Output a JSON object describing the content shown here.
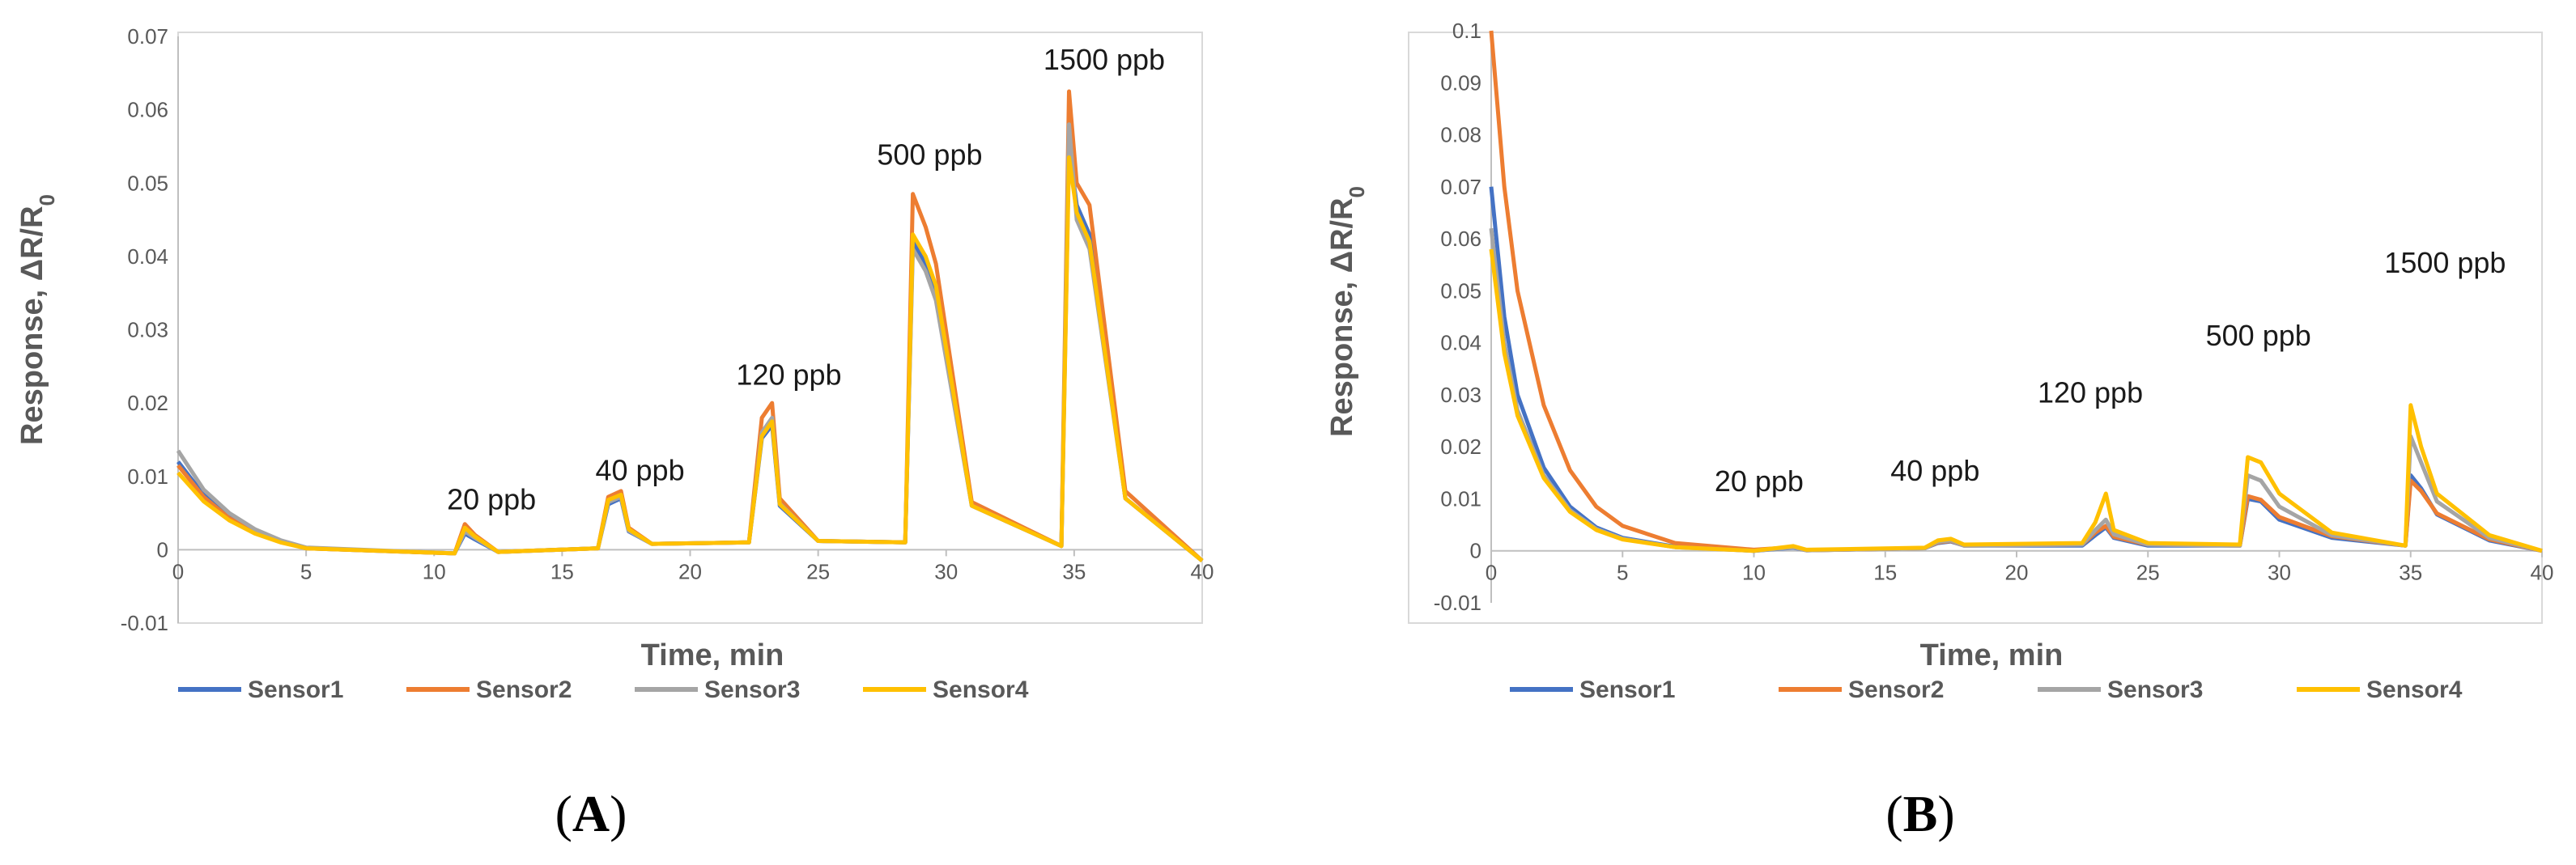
{
  "chart_data": [
    {
      "panel": "(A)",
      "panel_letter": "A",
      "type": "line",
      "xlabel": "Time, min",
      "ylabel": "Response, ΔR/R",
      "ylabel_sub": "0",
      "xlim": [
        0,
        40
      ],
      "ylim": [
        -0.01,
        0.07
      ],
      "xticks": [
        0,
        5,
        10,
        15,
        20,
        25,
        30,
        35,
        40
      ],
      "yticks": [
        -0.01,
        0,
        0.01,
        0.02,
        0.03,
        0.04,
        0.05,
        0.06,
        0.07
      ],
      "ytick_labels": [
        "-0.01",
        "0",
        "0.01",
        "0.02",
        "0.03",
        "0.04",
        "0.05",
        "0.06",
        "0.07"
      ],
      "legend": [
        "Sensor1",
        "Sensor2",
        "Sensor3",
        "Sensor4"
      ],
      "annotations": [
        {
          "text": "20 ppb",
          "x": 10.5,
          "y": 0.0055
        },
        {
          "text": "40 ppb",
          "x": 16.3,
          "y": 0.0095
        },
        {
          "text": "120 ppb",
          "x": 21.8,
          "y": 0.0225
        },
        {
          "text": "500 ppb",
          "x": 27.3,
          "y": 0.0525
        },
        {
          "text": "1500 ppb",
          "x": 33.8,
          "y": 0.0655
        }
      ],
      "series": [
        {
          "name": "Sensor1",
          "color": "#4472c4",
          "x": [
            0,
            1,
            2,
            3,
            4,
            5,
            10.8,
            11.2,
            11.6,
            12.5,
            16.4,
            16.8,
            17.3,
            17.6,
            18.5,
            22.3,
            22.8,
            23.2,
            23.5,
            25,
            28.4,
            28.7,
            29.2,
            29.6,
            31,
            34.5,
            34.8,
            35.1,
            35.6,
            37,
            40
          ],
          "y": [
            0.012,
            0.0075,
            0.0045,
            0.0025,
            0.0012,
            0.0002,
            -0.0005,
            0.0022,
            0.0014,
            -0.0003,
            0.0002,
            0.0062,
            0.007,
            0.0025,
            0.0008,
            0.001,
            0.0152,
            0.017,
            0.006,
            0.0012,
            0.001,
            0.042,
            0.039,
            0.035,
            0.006,
            0.0005,
            0.055,
            0.047,
            0.043,
            0.007,
            -0.0015
          ]
        },
        {
          "name": "Sensor2",
          "color": "#ed7d31",
          "x": [
            0,
            1,
            2,
            3,
            4,
            5,
            10.8,
            11.2,
            11.6,
            12.5,
            16.4,
            16.8,
            17.3,
            17.6,
            18.5,
            22.3,
            22.8,
            23.2,
            23.5,
            25,
            28.4,
            28.7,
            29.2,
            29.6,
            31,
            34.5,
            34.8,
            35.1,
            35.6,
            37,
            40
          ],
          "y": [
            0.0115,
            0.0072,
            0.0043,
            0.0024,
            0.0011,
            0.0002,
            -0.0005,
            0.0035,
            0.002,
            -0.0003,
            0.0002,
            0.0072,
            0.008,
            0.003,
            0.0008,
            0.001,
            0.018,
            0.02,
            0.007,
            0.0012,
            0.001,
            0.0485,
            0.044,
            0.039,
            0.0065,
            0.0005,
            0.0625,
            0.05,
            0.047,
            0.008,
            -0.0015
          ]
        },
        {
          "name": "Sensor3",
          "color": "#a5a5a5",
          "x": [
            0,
            1,
            2,
            3,
            4,
            5,
            10.8,
            11.2,
            11.6,
            12.5,
            16.4,
            16.8,
            17.3,
            17.6,
            18.5,
            22.3,
            22.8,
            23.2,
            23.5,
            25,
            28.4,
            28.7,
            29.2,
            29.6,
            31,
            34.5,
            34.8,
            35.1,
            35.6,
            37,
            40
          ],
          "y": [
            0.0135,
            0.0082,
            0.005,
            0.0028,
            0.0013,
            0.0003,
            -0.0005,
            0.0025,
            0.0016,
            -0.0003,
            0.0002,
            0.0065,
            0.0072,
            0.0026,
            0.0008,
            0.001,
            0.016,
            0.018,
            0.0063,
            0.0012,
            0.001,
            0.041,
            0.038,
            0.034,
            0.006,
            0.0005,
            0.058,
            0.045,
            0.041,
            0.007,
            -0.0015
          ]
        },
        {
          "name": "Sensor4",
          "color": "#ffc000",
          "x": [
            0,
            1,
            2,
            3,
            4,
            5,
            10.8,
            11.2,
            11.6,
            12.5,
            16.4,
            16.8,
            17.3,
            17.6,
            18.5,
            22.3,
            22.8,
            23.2,
            23.5,
            25,
            28.4,
            28.7,
            29.2,
            29.6,
            31,
            34.5,
            34.8,
            35.1,
            35.6,
            37,
            40
          ],
          "y": [
            0.0105,
            0.0066,
            0.004,
            0.0022,
            0.001,
            0.0002,
            -0.0005,
            0.003,
            0.0018,
            -0.0003,
            0.0002,
            0.0068,
            0.0075,
            0.0028,
            0.0008,
            0.001,
            0.0155,
            0.0175,
            0.0062,
            0.0012,
            0.001,
            0.043,
            0.04,
            0.036,
            0.006,
            0.0005,
            0.0535,
            0.046,
            0.042,
            0.007,
            -0.0015
          ]
        }
      ]
    },
    {
      "panel": "(B)",
      "panel_letter": "B",
      "type": "line",
      "xlabel": "Time, min",
      "ylabel": "Response, ΔR/R",
      "ylabel_sub": "0",
      "xlim": [
        0,
        40
      ],
      "ylim": [
        -0.01,
        0.1
      ],
      "xticks": [
        0,
        5,
        10,
        15,
        20,
        25,
        30,
        35,
        40
      ],
      "yticks": [
        -0.01,
        0,
        0.01,
        0.02,
        0.03,
        0.04,
        0.05,
        0.06,
        0.07,
        0.08,
        0.09,
        0.1
      ],
      "ytick_labels": [
        "-0.01",
        "0",
        "0.01",
        "0.02",
        "0.03",
        "0.04",
        "0.05",
        "0.06",
        "0.07",
        "0.08",
        "0.09",
        "0.1"
      ],
      "legend": [
        "Sensor1",
        "Sensor2",
        "Sensor3",
        "Sensor4"
      ],
      "annotations": [
        {
          "text": "20 ppb",
          "x": 8.5,
          "y": 0.0115
        },
        {
          "text": "40 ppb",
          "x": 15.2,
          "y": 0.0135
        },
        {
          "text": "120 ppb",
          "x": 20.8,
          "y": 0.0285
        },
        {
          "text": "500 ppb",
          "x": 27.2,
          "y": 0.0395
        },
        {
          "text": "1500 ppb",
          "x": 34.0,
          "y": 0.0535
        }
      ],
      "series": [
        {
          "name": "Sensor1",
          "color": "#4472c4",
          "x": [
            0,
            0.5,
            1,
            2,
            3,
            4,
            5,
            7,
            10,
            11.5,
            12,
            16.5,
            17,
            17.5,
            18,
            22.5,
            23,
            23.4,
            23.7,
            25,
            28.5,
            28.8,
            29.3,
            30,
            32,
            34.8,
            35.0,
            35.4,
            36,
            38,
            40
          ],
          "y": [
            0.07,
            0.045,
            0.03,
            0.016,
            0.0085,
            0.0045,
            0.0025,
            0.0008,
            0.0,
            0.0006,
            0.0001,
            0.0005,
            0.0015,
            0.0018,
            0.001,
            0.001,
            0.003,
            0.0045,
            0.0025,
            0.001,
            0.001,
            0.01,
            0.0095,
            0.006,
            0.0025,
            0.001,
            0.0145,
            0.012,
            0.007,
            0.002,
            0.0
          ]
        },
        {
          "name": "Sensor2",
          "color": "#ed7d31",
          "x": [
            0,
            0.5,
            1,
            2,
            3,
            4,
            5,
            7,
            10,
            11.5,
            12,
            16.5,
            17,
            17.5,
            18,
            22.5,
            23,
            23.4,
            23.7,
            25,
            28.5,
            28.8,
            29.3,
            30,
            32,
            34.8,
            35.0,
            35.4,
            36,
            38,
            40
          ],
          "y": [
            0.1,
            0.07,
            0.05,
            0.028,
            0.0155,
            0.0085,
            0.0048,
            0.0015,
            0.0002,
            0.0007,
            0.0001,
            0.0005,
            0.0016,
            0.0019,
            0.001,
            0.0012,
            0.0035,
            0.0048,
            0.0027,
            0.0012,
            0.001,
            0.0105,
            0.0098,
            0.0065,
            0.0028,
            0.001,
            0.0135,
            0.0115,
            0.0072,
            0.0022,
            0.0
          ]
        },
        {
          "name": "Sensor3",
          "color": "#a5a5a5",
          "x": [
            0,
            0.5,
            1,
            2,
            3,
            4,
            5,
            7,
            10,
            11.5,
            12,
            16.5,
            17,
            17.5,
            18,
            22.5,
            23,
            23.4,
            23.7,
            25,
            28.5,
            28.8,
            29.3,
            30,
            32,
            34.8,
            35.0,
            35.4,
            36,
            38,
            40
          ],
          "y": [
            0.062,
            0.04,
            0.027,
            0.0145,
            0.0078,
            0.0042,
            0.0023,
            0.0007,
            0.0,
            0.0007,
            0.0001,
            0.0005,
            0.0017,
            0.002,
            0.001,
            0.0012,
            0.004,
            0.006,
            0.0032,
            0.0012,
            0.001,
            0.0145,
            0.0135,
            0.0085,
            0.003,
            0.001,
            0.022,
            0.017,
            0.0095,
            0.0025,
            0.0
          ]
        },
        {
          "name": "Sensor4",
          "color": "#ffc000",
          "x": [
            0,
            0.5,
            1,
            2,
            3,
            4,
            5,
            7,
            10,
            11.5,
            12,
            16.5,
            17,
            17.5,
            18,
            22.5,
            23,
            23.4,
            23.7,
            25,
            28.5,
            28.8,
            29.3,
            30,
            32,
            34.8,
            35.0,
            35.4,
            36,
            38,
            40
          ],
          "y": [
            0.058,
            0.038,
            0.026,
            0.014,
            0.0075,
            0.004,
            0.0022,
            0.0007,
            0.0,
            0.0009,
            0.0002,
            0.0006,
            0.002,
            0.0023,
            0.0012,
            0.0015,
            0.0055,
            0.011,
            0.004,
            0.0015,
            0.0012,
            0.018,
            0.017,
            0.011,
            0.0035,
            0.001,
            0.028,
            0.02,
            0.011,
            0.003,
            0.0
          ]
        }
      ]
    }
  ]
}
